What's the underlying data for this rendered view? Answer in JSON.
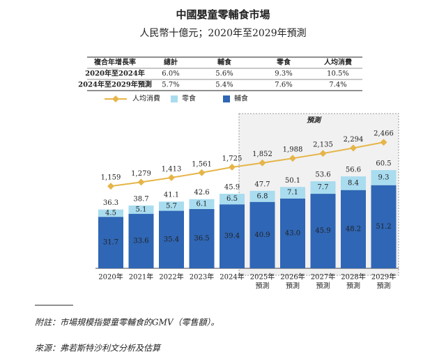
{
  "title": "中國嬰童零輔食市場",
  "subtitle": "人民幣十億元；2020年至2029年預測",
  "table": {
    "header": [
      "複合年增長率",
      "總計",
      "輔食",
      "零食",
      "人均消費"
    ],
    "rows": [
      [
        "2020年至2024年",
        "6.0%",
        "5.6%",
        "9.3%",
        "10.5%"
      ],
      [
        "2024年至2029年預測",
        "5.7%",
        "5.4%",
        "7.6%",
        "7.4%"
      ]
    ]
  },
  "chart_data": {
    "type": "bar",
    "stacked": true,
    "categories": [
      "2020年",
      "2021年",
      "2022年",
      "2023年",
      "2024年",
      "2025年",
      "2026年",
      "2027年",
      "2028年",
      "2029年"
    ],
    "category_sublabels": [
      null,
      null,
      null,
      null,
      null,
      "預測",
      "預測",
      "預測",
      "預測",
      "預測"
    ],
    "forecast_label": "預測",
    "series": [
      {
        "name": "輔食",
        "color": "#2f66b5",
        "values": [
          31.7,
          33.6,
          35.4,
          36.5,
          39.4,
          40.9,
          43.0,
          45.9,
          48.2,
          51.2
        ],
        "value_labels": [
          "31.7",
          "33.6",
          "35.4",
          "36.5",
          "39.4",
          "40.9",
          "43.0",
          "45.9",
          "48.2",
          "51.2"
        ]
      },
      {
        "name": "零食",
        "color": "#a9dcef",
        "values": [
          4.5,
          5.1,
          5.7,
          6.1,
          6.5,
          6.8,
          7.1,
          7.7,
          8.4,
          9.3
        ]
      },
      {
        "name": "人均消費",
        "type": "line",
        "axis": "y2",
        "color": "#e6b548",
        "values": [
          1159,
          1279,
          1413,
          1561,
          1725,
          1852,
          1988,
          2135,
          2294,
          2466
        ],
        "value_labels": [
          "1,159",
          "1,279",
          "1,413",
          "1,561",
          "1,725",
          "1,852",
          "1,988",
          "2,135",
          "2,294",
          "2,466"
        ]
      }
    ],
    "totals": [
      36.3,
      38.7,
      41.1,
      42.6,
      45.9,
      47.7,
      50.1,
      53.6,
      56.6,
      60.5
    ]
  },
  "footnote": "附註：市場規模指嬰童零輔食的GMV（零售額）。",
  "source": "來源：弗若斯特沙利文分析及估算"
}
